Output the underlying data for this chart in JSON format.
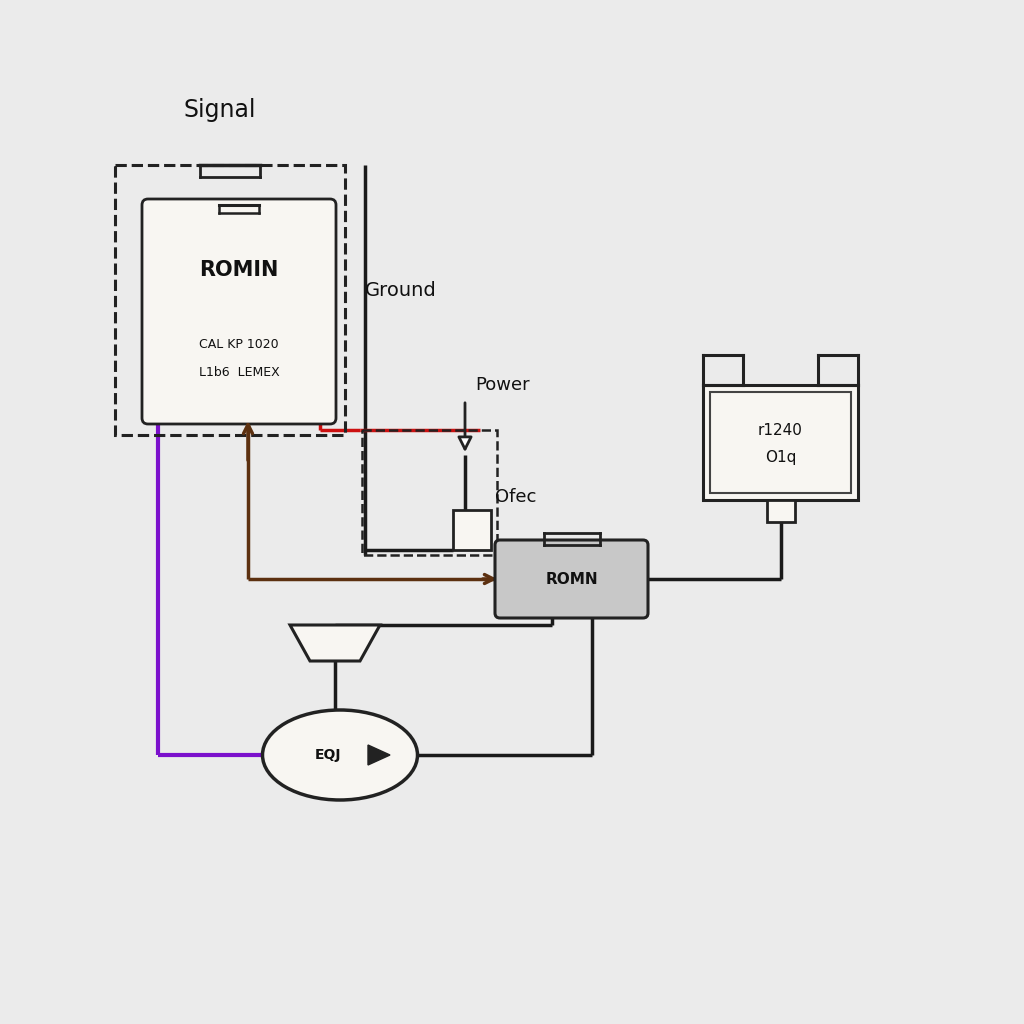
{
  "bg_color": "#ebebeb",
  "signal_label": "Signal",
  "ground_label": "Ground",
  "power_label": "Power",
  "ofec_label": "Ofec",
  "romin_label": "ROMIN",
  "romin_sub1": "CAL KP 1020",
  "romin_sub2": "L1b6  LEMEX",
  "romn_label": "ROMN",
  "ecu_label": "EQJ",
  "r1240_line1": "r1240",
  "r1240_line2": "O1q",
  "wire_brown": "#5c3010",
  "wire_purple": "#7b10cc",
  "wire_red": "#cc1010",
  "wire_black": "#1a1a1a",
  "box_color": "#222222",
  "text_color": "#111111",
  "box_face": "#f8f6f2"
}
